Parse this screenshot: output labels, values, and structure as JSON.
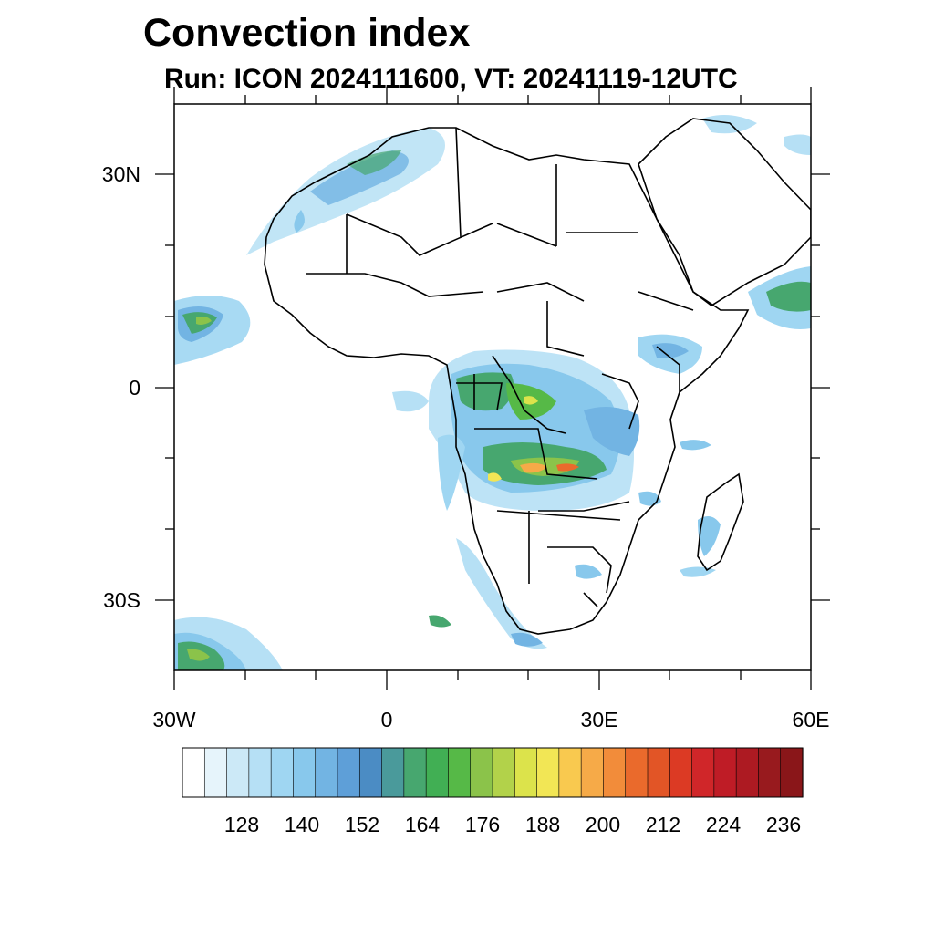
{
  "header": {
    "title": "Convection index",
    "subtitle": "Run: ICON 2024111600,  VT: 20241119-12UTC"
  },
  "map": {
    "projection": "cylindrical equidistant",
    "lon_range": [
      -30,
      60
    ],
    "lat_range": [
      -40,
      40
    ],
    "x_tick_labels": [
      "30W",
      "0",
      "30E",
      "60E"
    ],
    "y_tick_labels": [
      "30N",
      "0",
      "30S"
    ]
  },
  "colorbar": {
    "labels": [
      "128",
      "140",
      "152",
      "164",
      "176",
      "188",
      "200",
      "212",
      "224",
      "236"
    ],
    "colors": [
      "#ffffff",
      "#e6f4fb",
      "#cce9f7",
      "#b6e0f5",
      "#9fd6f2",
      "#88c8ec",
      "#72b4e3",
      "#5e9fd8",
      "#4b8cc4",
      "#4a9a9b",
      "#47a76f",
      "#41af54",
      "#56b947",
      "#8bc34a",
      "#b2d24a",
      "#dce34b",
      "#f2e655",
      "#f9c94f",
      "#f6aa48",
      "#f28c3a",
      "#ea6a2c",
      "#e25526",
      "#dc3a24",
      "#d02629",
      "#bf1c26",
      "#ad1a22",
      "#981a1e",
      "#8a1619"
    ]
  }
}
